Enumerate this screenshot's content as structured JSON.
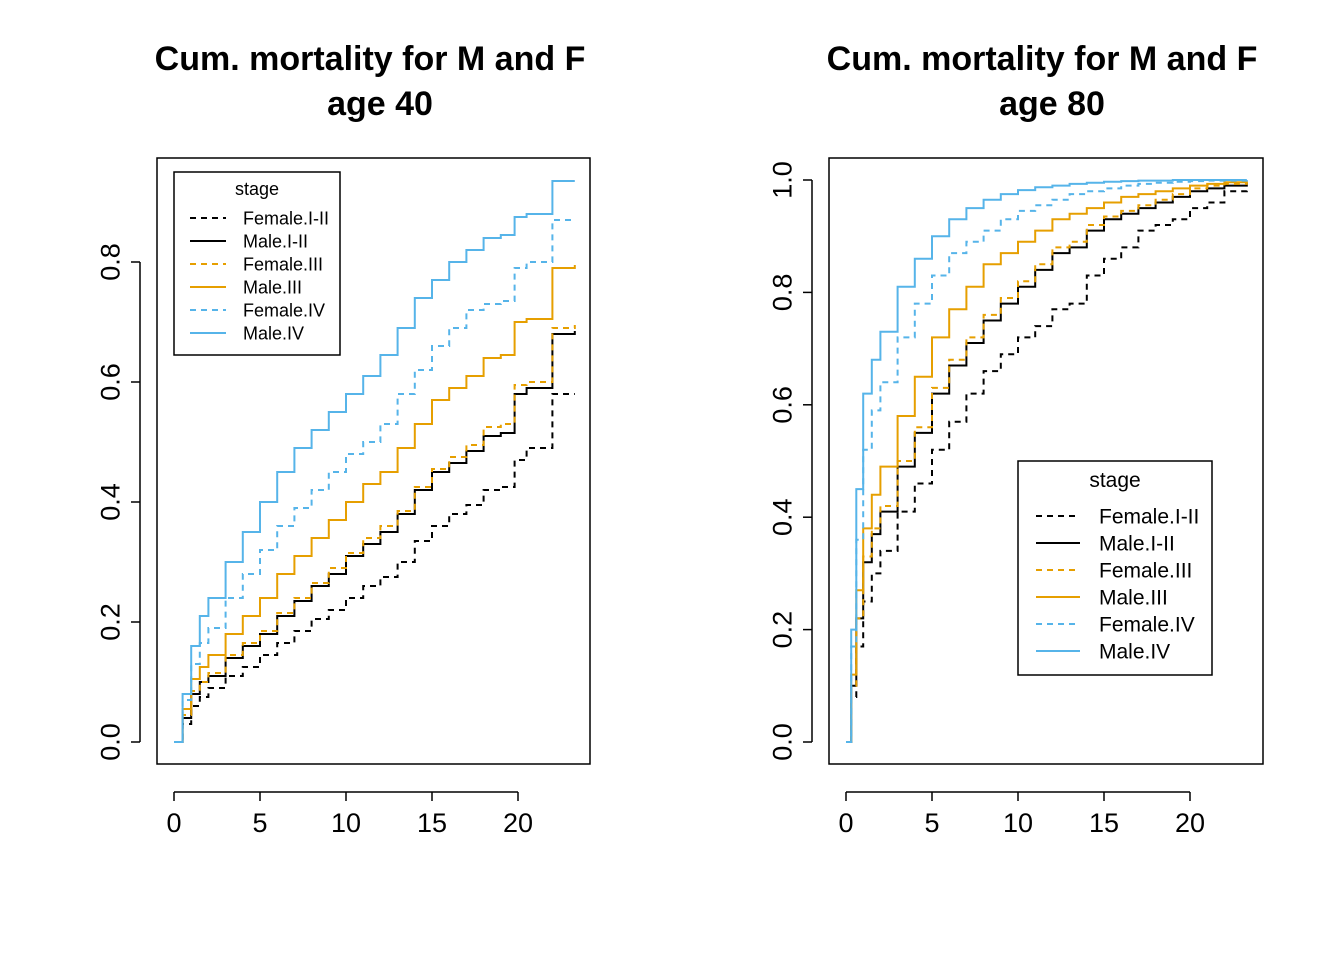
{
  "colors": {
    "black": "#000000",
    "orange": "#E69F00",
    "skyblue": "#56B4E9"
  },
  "chart_data": [
    {
      "type": "line",
      "step": true,
      "title": [
        "Cum. mortality for M and F",
        "age 40"
      ],
      "xlabel": "",
      "ylabel": "",
      "xlim": [
        0,
        23.3
      ],
      "ylim": [
        0,
        0.935
      ],
      "xticks": [
        "0",
        "5",
        "10",
        "15",
        "20"
      ],
      "yticks": [
        "0.0",
        "0.2",
        "0.4",
        "0.6",
        "0.8"
      ],
      "legend": {
        "title": "stage",
        "position": "top-left",
        "entries": [
          "Female.I-II",
          "Male.I-II",
          "Female.III",
          "Male.III",
          "Female.IV",
          "Male.IV"
        ]
      },
      "series": [
        {
          "name": "Female.I-II",
          "color": "black",
          "dash": true,
          "x": [
            0,
            0.5,
            1,
            1.5,
            2,
            3,
            4,
            5,
            6,
            7,
            8,
            9,
            10,
            11,
            12,
            13,
            14,
            15,
            16,
            17,
            18,
            19,
            19.8,
            20.5,
            21,
            22,
            23.3
          ],
          "y": [
            0,
            0.03,
            0.06,
            0.075,
            0.09,
            0.11,
            0.125,
            0.145,
            0.165,
            0.185,
            0.205,
            0.22,
            0.24,
            0.26,
            0.275,
            0.3,
            0.335,
            0.36,
            0.38,
            0.395,
            0.42,
            0.425,
            0.47,
            0.49,
            0.49,
            0.58,
            0.58
          ]
        },
        {
          "name": "Male.I-II",
          "color": "black",
          "dash": false,
          "x": [
            0,
            0.5,
            1,
            1.5,
            2,
            3,
            4,
            5,
            6,
            7,
            8,
            9,
            10,
            11,
            12,
            13,
            14,
            15,
            16,
            17,
            18,
            19,
            19.8,
            20.5,
            21,
            22,
            23.3
          ],
          "y": [
            0,
            0.04,
            0.08,
            0.1,
            0.11,
            0.14,
            0.16,
            0.18,
            0.21,
            0.235,
            0.26,
            0.28,
            0.31,
            0.33,
            0.35,
            0.38,
            0.42,
            0.45,
            0.465,
            0.485,
            0.51,
            0.515,
            0.58,
            0.59,
            0.59,
            0.68,
            0.685
          ]
        },
        {
          "name": "Female.III",
          "color": "orange",
          "dash": true,
          "x": [
            0,
            0.5,
            1,
            1.5,
            2,
            3,
            4,
            5,
            6,
            7,
            8,
            9,
            10,
            11,
            12,
            13,
            14,
            15,
            16,
            17,
            18,
            19,
            19.8,
            20.5,
            21,
            22,
            23.3
          ],
          "y": [
            0,
            0.045,
            0.085,
            0.1,
            0.115,
            0.145,
            0.165,
            0.185,
            0.215,
            0.24,
            0.265,
            0.29,
            0.315,
            0.34,
            0.36,
            0.385,
            0.425,
            0.455,
            0.475,
            0.495,
            0.525,
            0.53,
            0.595,
            0.6,
            0.6,
            0.69,
            0.695
          ]
        },
        {
          "name": "Male.III",
          "color": "orange",
          "dash": false,
          "x": [
            0,
            0.5,
            1,
            1.5,
            2,
            3,
            4,
            5,
            6,
            7,
            8,
            9,
            10,
            11,
            12,
            13,
            14,
            15,
            16,
            17,
            18,
            19,
            19.8,
            20.5,
            21,
            22,
            23.3
          ],
          "y": [
            0,
            0.055,
            0.105,
            0.125,
            0.145,
            0.18,
            0.21,
            0.24,
            0.28,
            0.31,
            0.34,
            0.37,
            0.4,
            0.43,
            0.45,
            0.49,
            0.53,
            0.57,
            0.59,
            0.61,
            0.64,
            0.645,
            0.7,
            0.705,
            0.705,
            0.79,
            0.795
          ]
        },
        {
          "name": "Female.IV",
          "color": "skyblue",
          "dash": true,
          "x": [
            0,
            0.5,
            1,
            1.5,
            2,
            3,
            4,
            5,
            6,
            7,
            8,
            9,
            10,
            11,
            12,
            13,
            14,
            15,
            16,
            17,
            18,
            19,
            19.8,
            20.5,
            21,
            22,
            23.3
          ],
          "y": [
            0,
            0.07,
            0.13,
            0.165,
            0.19,
            0.24,
            0.28,
            0.32,
            0.36,
            0.39,
            0.42,
            0.45,
            0.48,
            0.5,
            0.53,
            0.58,
            0.62,
            0.66,
            0.69,
            0.72,
            0.73,
            0.735,
            0.79,
            0.8,
            0.8,
            0.87,
            0.87
          ]
        },
        {
          "name": "Male.IV",
          "color": "skyblue",
          "dash": false,
          "x": [
            0,
            0.5,
            1,
            1.5,
            2,
            3,
            4,
            5,
            6,
            7,
            8,
            9,
            10,
            11,
            12,
            13,
            14,
            15,
            16,
            17,
            18,
            19,
            19.8,
            20.5,
            21,
            22,
            23.3
          ],
          "y": [
            0,
            0.08,
            0.16,
            0.21,
            0.24,
            0.3,
            0.35,
            0.4,
            0.45,
            0.49,
            0.52,
            0.55,
            0.58,
            0.61,
            0.645,
            0.69,
            0.74,
            0.77,
            0.8,
            0.82,
            0.84,
            0.845,
            0.875,
            0.88,
            0.88,
            0.935,
            0.935
          ]
        }
      ]
    },
    {
      "type": "line",
      "step": true,
      "title": [
        "Cum. mortality for M and F",
        "age 80"
      ],
      "xlabel": "",
      "ylabel": "",
      "xlim": [
        0,
        23.3
      ],
      "ylim": [
        0,
        1.0
      ],
      "xticks": [
        "0",
        "5",
        "10",
        "15",
        "20"
      ],
      "yticks": [
        "0.0",
        "0.2",
        "0.4",
        "0.6",
        "0.8",
        "1.0"
      ],
      "legend": {
        "title": "stage",
        "position": "bottom-right",
        "entries": [
          "Female.I-II",
          "Male.I-II",
          "Female.III",
          "Male.III",
          "Female.IV",
          "Male.IV"
        ]
      },
      "series": [
        {
          "name": "Female.I-II",
          "color": "black",
          "dash": true,
          "x": [
            0,
            0.3,
            0.6,
            1,
            1.5,
            2,
            3,
            4,
            5,
            6,
            7,
            8,
            9,
            10,
            11,
            12,
            13,
            14,
            15,
            16,
            17,
            18,
            19,
            20,
            21,
            22,
            23.3
          ],
          "y": [
            0,
            0.08,
            0.17,
            0.25,
            0.3,
            0.34,
            0.41,
            0.46,
            0.52,
            0.57,
            0.62,
            0.66,
            0.69,
            0.72,
            0.74,
            0.77,
            0.78,
            0.83,
            0.86,
            0.88,
            0.91,
            0.92,
            0.93,
            0.95,
            0.96,
            0.98,
            0.985
          ]
        },
        {
          "name": "Male.I-II",
          "color": "black",
          "dash": false,
          "x": [
            0,
            0.3,
            0.6,
            1,
            1.5,
            2,
            3,
            4,
            5,
            6,
            7,
            8,
            9,
            10,
            11,
            12,
            13,
            14,
            15,
            16,
            17,
            18,
            19,
            20,
            21,
            22,
            23.3
          ],
          "y": [
            0,
            0.1,
            0.22,
            0.32,
            0.37,
            0.41,
            0.49,
            0.55,
            0.62,
            0.67,
            0.71,
            0.75,
            0.78,
            0.81,
            0.84,
            0.87,
            0.88,
            0.91,
            0.93,
            0.94,
            0.95,
            0.96,
            0.97,
            0.98,
            0.985,
            0.99,
            0.995
          ]
        },
        {
          "name": "Female.III",
          "color": "orange",
          "dash": true,
          "x": [
            0,
            0.3,
            0.6,
            1,
            1.5,
            2,
            3,
            4,
            5,
            6,
            7,
            8,
            9,
            10,
            11,
            12,
            13,
            14,
            15,
            16,
            17,
            18,
            19,
            20,
            21,
            22,
            23.3
          ],
          "y": [
            0,
            0.1,
            0.22,
            0.33,
            0.38,
            0.42,
            0.5,
            0.56,
            0.63,
            0.68,
            0.72,
            0.76,
            0.79,
            0.82,
            0.85,
            0.88,
            0.89,
            0.92,
            0.935,
            0.945,
            0.955,
            0.965,
            0.975,
            0.985,
            0.99,
            0.993,
            0.997
          ]
        },
        {
          "name": "Male.III",
          "color": "orange",
          "dash": false,
          "x": [
            0,
            0.3,
            0.6,
            1,
            1.5,
            2,
            3,
            4,
            5,
            6,
            7,
            8,
            9,
            10,
            11,
            12,
            13,
            14,
            15,
            16,
            17,
            18,
            19,
            20,
            21,
            22,
            23.3
          ],
          "y": [
            0,
            0.12,
            0.27,
            0.38,
            0.44,
            0.49,
            0.58,
            0.65,
            0.72,
            0.77,
            0.81,
            0.85,
            0.87,
            0.89,
            0.91,
            0.93,
            0.94,
            0.95,
            0.96,
            0.97,
            0.975,
            0.98,
            0.985,
            0.99,
            0.993,
            0.996,
            0.998
          ]
        },
        {
          "name": "Female.IV",
          "color": "skyblue",
          "dash": true,
          "x": [
            0,
            0.3,
            0.6,
            1,
            1.5,
            2,
            3,
            4,
            5,
            6,
            7,
            8,
            9,
            10,
            11,
            12,
            13,
            14,
            15,
            16,
            17,
            18,
            19,
            20,
            21,
            22,
            23.3
          ],
          "y": [
            0,
            0.17,
            0.36,
            0.52,
            0.59,
            0.64,
            0.72,
            0.78,
            0.83,
            0.87,
            0.89,
            0.91,
            0.93,
            0.945,
            0.955,
            0.965,
            0.975,
            0.98,
            0.985,
            0.99,
            0.993,
            0.995,
            0.997,
            0.998,
            0.999,
            0.999,
            1.0
          ]
        },
        {
          "name": "Male.IV",
          "color": "skyblue",
          "dash": false,
          "x": [
            0,
            0.3,
            0.6,
            1,
            1.5,
            2,
            3,
            4,
            5,
            6,
            7,
            8,
            9,
            10,
            11,
            12,
            13,
            14,
            15,
            16,
            17,
            18,
            19,
            20,
            21,
            22,
            23.3
          ],
          "y": [
            0,
            0.2,
            0.45,
            0.62,
            0.68,
            0.73,
            0.81,
            0.86,
            0.9,
            0.93,
            0.95,
            0.965,
            0.975,
            0.982,
            0.987,
            0.99,
            0.993,
            0.995,
            0.997,
            0.998,
            0.999,
            0.999,
            1.0,
            1.0,
            1.0,
            1.0,
            1.0
          ]
        }
      ]
    }
  ]
}
